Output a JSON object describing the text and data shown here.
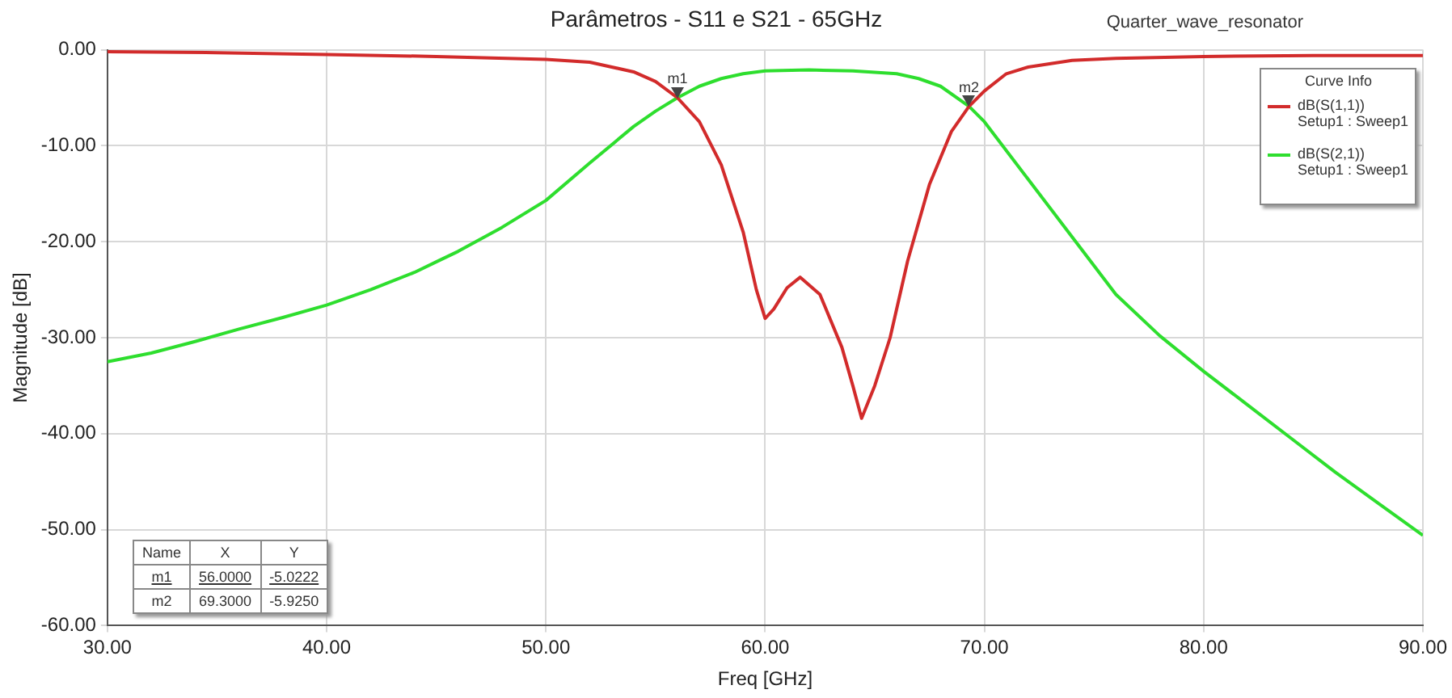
{
  "chart_data": {
    "type": "line",
    "title": "Parâmetros - S11 e S21 - 65GHz",
    "xlabel": "Freq [GHz]",
    "ylabel": "Magnitude [dB]",
    "legend_title": "Curve Info",
    "series": [
      {
        "name": "dB(S(1,1))\nSetup1 : Sweep1",
        "color": "#d22b2b",
        "x": [
          30,
          35,
          40,
          45,
          50,
          52,
          54,
          55,
          56,
          57,
          58,
          59,
          59.6,
          60,
          60.4,
          61,
          61.6,
          62.5,
          63.5,
          64,
          64.4,
          65,
          65.7,
          66.5,
          67.5,
          68.5,
          69.3,
          70,
          71,
          72,
          74,
          76,
          80,
          85,
          90
        ],
        "values": [
          -0.2,
          -0.3,
          -0.5,
          -0.7,
          -1,
          -1.3,
          -2.3,
          -3.3,
          -5,
          -7.5,
          -12,
          -19,
          -25,
          -28,
          -27,
          -24.8,
          -23.7,
          -25.5,
          -31,
          -35,
          -38.4,
          -35,
          -30,
          -22,
          -14,
          -8.5,
          -5.9,
          -4.3,
          -2.5,
          -1.8,
          -1.1,
          -0.9,
          -0.7,
          -0.6,
          -0.6
        ]
      },
      {
        "name": "dB(S(2,1))\nSetup1 : Sweep1",
        "color": "#2ede2e",
        "x": [
          30,
          32,
          34,
          36,
          38,
          40,
          42,
          44,
          45,
          46,
          48,
          50,
          52,
          54,
          55,
          56,
          57,
          58,
          59,
          60,
          62,
          64,
          66,
          67,
          68,
          69.3,
          70,
          72,
          74,
          76,
          78,
          80,
          82,
          84,
          86,
          88,
          90
        ],
        "values": [
          -32.5,
          -31.6,
          -30.4,
          -29.1,
          -27.9,
          -26.6,
          -25,
          -23.2,
          -22.1,
          -21,
          -18.5,
          -15.7,
          -11.8,
          -8,
          -6.4,
          -5,
          -3.8,
          -3,
          -2.5,
          -2.2,
          -2.1,
          -2.2,
          -2.5,
          -3,
          -3.8,
          -5.9,
          -7.5,
          -13.5,
          -19.5,
          -25.5,
          -29.8,
          -33.5,
          -37,
          -40.5,
          -44,
          -47.3,
          -50.6
        ]
      }
    ],
    "xlim": [
      30,
      90
    ],
    "xticks": [
      {
        "value": 30,
        "label": "30.00"
      },
      {
        "value": 40,
        "label": "40.00"
      },
      {
        "value": 50,
        "label": "50.00"
      },
      {
        "value": 60,
        "label": "60.00"
      },
      {
        "value": 70,
        "label": "70.00"
      },
      {
        "value": 80,
        "label": "80.00"
      },
      {
        "value": 90,
        "label": "90.00"
      }
    ],
    "ylim": [
      -60,
      0
    ],
    "yticks": [
      {
        "value": -60,
        "label": "-60.00"
      },
      {
        "value": -50,
        "label": "-50.00"
      },
      {
        "value": -40,
        "label": "-40.00"
      },
      {
        "value": -30,
        "label": "-30.00"
      },
      {
        "value": -20,
        "label": "-20.00"
      },
      {
        "value": -10,
        "label": "-10.00"
      },
      {
        "value": 0,
        "label": "0.00"
      }
    ],
    "grid": true,
    "legend": "top right",
    "marker": "none",
    "line_style": "solid",
    "annotations": [
      "Quarter_wave_resonator",
      {
        "text": "m1",
        "x": 56,
        "y": -5.0222
      },
      {
        "text": "m2",
        "x": 69.3,
        "y": -5.925
      },
      "Name",
      "X",
      "Y",
      "m1",
      "56.0000",
      "-5.0222",
      "m2",
      "69.3000",
      "-5.9250"
    ]
  }
}
